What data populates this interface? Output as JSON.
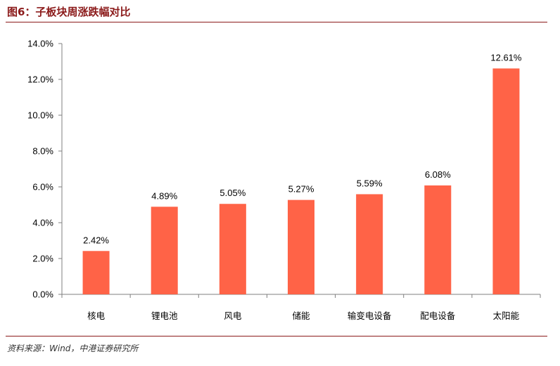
{
  "figure": {
    "title": "图6：子板块周涨跌幅对比",
    "source": "资料来源：Wind，中港证券研究所"
  },
  "colors": {
    "bar": "#ff6347",
    "rule": "#8b1a1a",
    "axis": "#7f7f7f"
  },
  "chart_data": {
    "type": "bar",
    "categories": [
      "核电",
      "锂电池",
      "风电",
      "储能",
      "输变电设备",
      "配电设备",
      "太阳能"
    ],
    "values": [
      2.42,
      4.89,
      5.05,
      5.27,
      5.59,
      6.08,
      12.61
    ],
    "data_labels": [
      "2.42%",
      "4.89%",
      "5.05%",
      "5.27%",
      "5.59%",
      "6.08%",
      "12.61%"
    ],
    "yticks": [
      "0.0%",
      "2.0%",
      "4.0%",
      "6.0%",
      "8.0%",
      "10.0%",
      "12.0%",
      "14.0%"
    ],
    "ylim": [
      0,
      14
    ],
    "ytick_step": 2,
    "title": "",
    "xlabel": "",
    "ylabel": "",
    "grid": false,
    "legend": "none"
  }
}
